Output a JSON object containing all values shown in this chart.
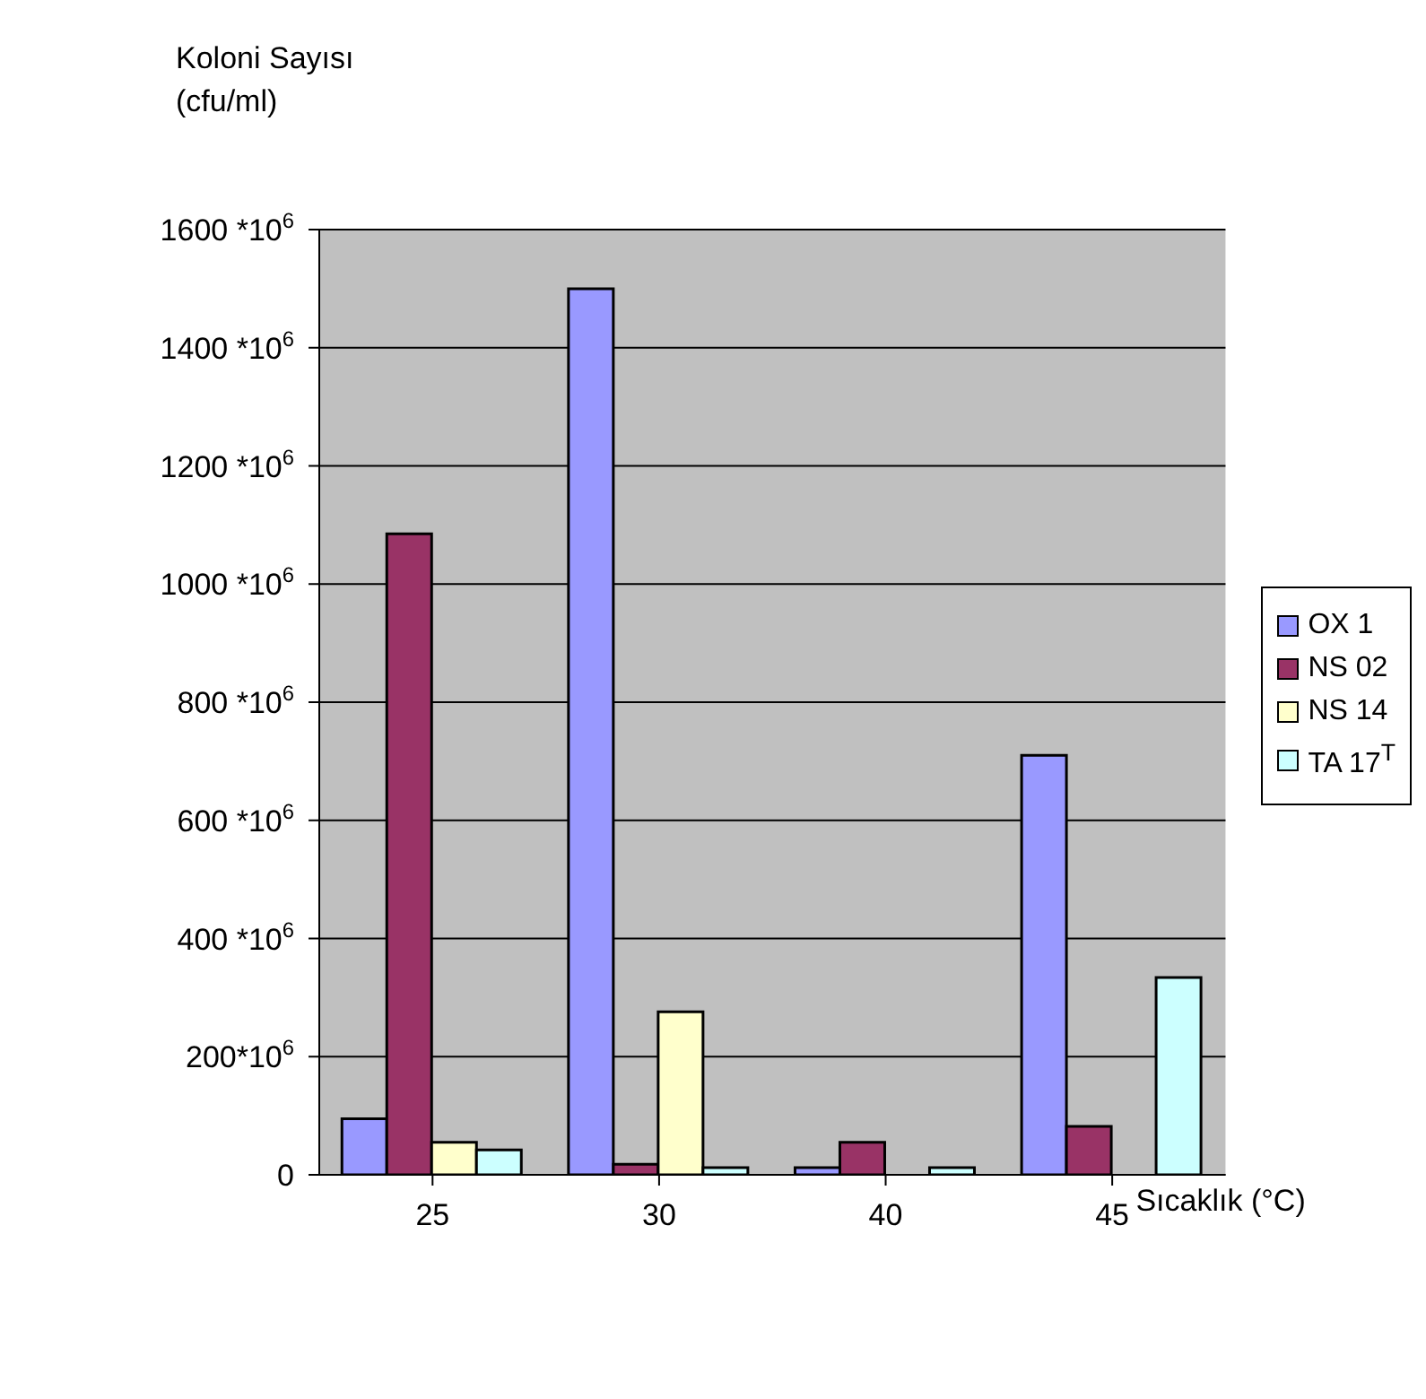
{
  "chart_data": {
    "type": "bar",
    "xlabel": "Sıcaklık (°C)",
    "ylabel": "Koloni Sayısı\n(cfu/ml)",
    "categories": [
      "25",
      "30",
      "40",
      "45"
    ],
    "series": [
      {
        "name": "OX 1",
        "color": "#9999ff",
        "values": [
          95000000,
          1500000000,
          12000000,
          710000000
        ]
      },
      {
        "name": "NS 02",
        "color": "#993366",
        "values": [
          1085000000,
          18000000,
          55000000,
          82000000
        ]
      },
      {
        "name": "NS 14",
        "color": "#ffffcc",
        "values": [
          55000000,
          276000000,
          0,
          0
        ]
      },
      {
        "name": "TA 17$^{T}$",
        "color": "#ccffff",
        "values": [
          42000000,
          12000000,
          12000000,
          334000000
        ]
      }
    ],
    "ylim": [
      0,
      1600000000
    ],
    "yticks": [
      0,
      {
        "value": 200000000,
        "label": "200*10$^{6}$"
      },
      {
        "value": 400000000,
        "label": "400 *10$^{6}$"
      },
      {
        "value": 600000000,
        "label": "600 *10$^{6}$"
      },
      {
        "value": 800000000,
        "label": "800 *10$^{6}$"
      },
      {
        "value": 1000000000,
        "label": "1000 *10$^{6}$"
      },
      {
        "value": 1200000000,
        "label": "1200 *10$^{6}$"
      },
      {
        "value": 1400000000,
        "label": "1400 *10$^{6}$"
      },
      {
        "value": 1600000000,
        "label": "1600 *10$^{6}$"
      }
    ],
    "grid": "y",
    "legend": "right"
  }
}
